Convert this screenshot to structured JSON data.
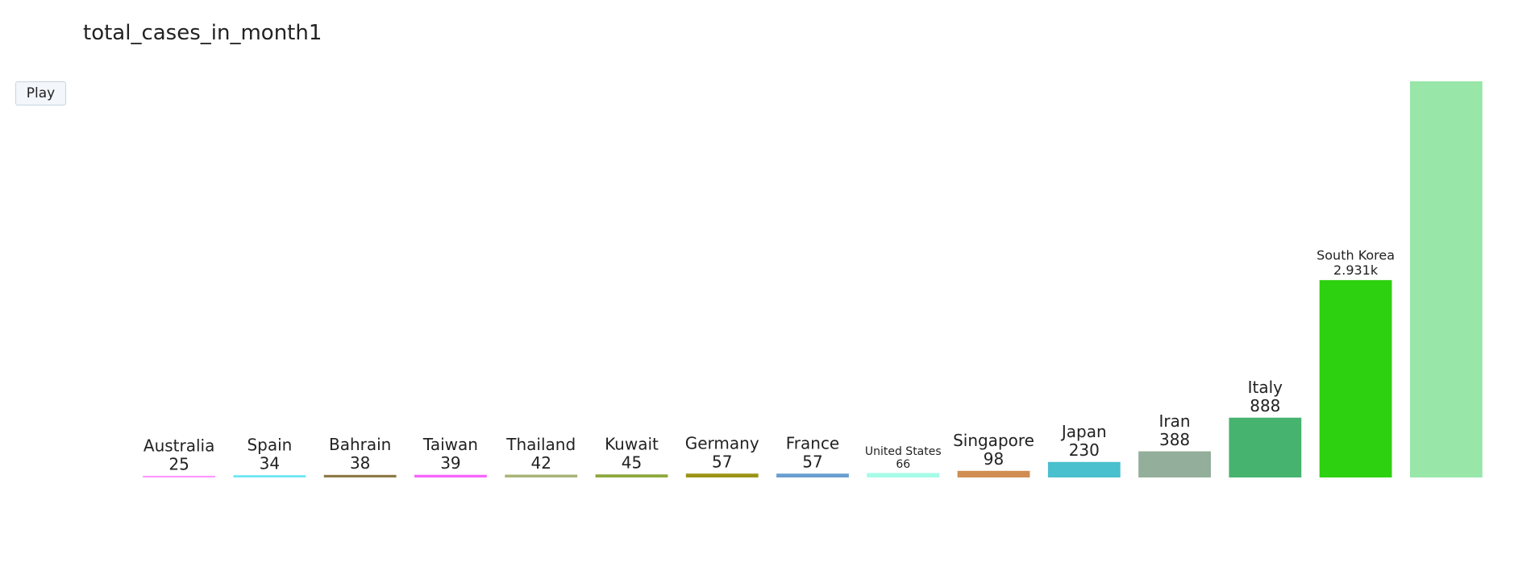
{
  "chart_data": {
    "type": "bar",
    "title": "total_cases_in_month1",
    "xlabel": "",
    "ylabel": "",
    "ylim": [
      0,
      5883
    ],
    "grid": false,
    "categories": [
      "Australia",
      "Spain",
      "Bahrain",
      "Taiwan",
      "Thailand",
      "Kuwait",
      "Germany",
      "France",
      "United States",
      "Singapore",
      "Japan",
      "Iran",
      "Italy",
      "South Korea",
      ""
    ],
    "values": [
      25,
      34,
      38,
      39,
      42,
      45,
      57,
      57,
      66,
      98,
      230,
      388,
      888,
      2931,
      5883
    ],
    "value_labels": [
      "25",
      "34",
      "38",
      "39",
      "42",
      "45",
      "57",
      "57",
      "66",
      "98",
      "230",
      "388",
      "888",
      "2.931k",
      ""
    ],
    "colors": [
      "#ff97ff",
      "#6fe7f5",
      "#8c7a46",
      "#f763fc",
      "#a9b577",
      "#8ca83b",
      "#9b9416",
      "#6a9ecf",
      "#a6fbe7",
      "#d08e52",
      "#4abfcd",
      "#93ae9a",
      "#46b36e",
      "#2dd110",
      "#98e6a8"
    ]
  },
  "controls": {
    "play_label": "Play"
  }
}
